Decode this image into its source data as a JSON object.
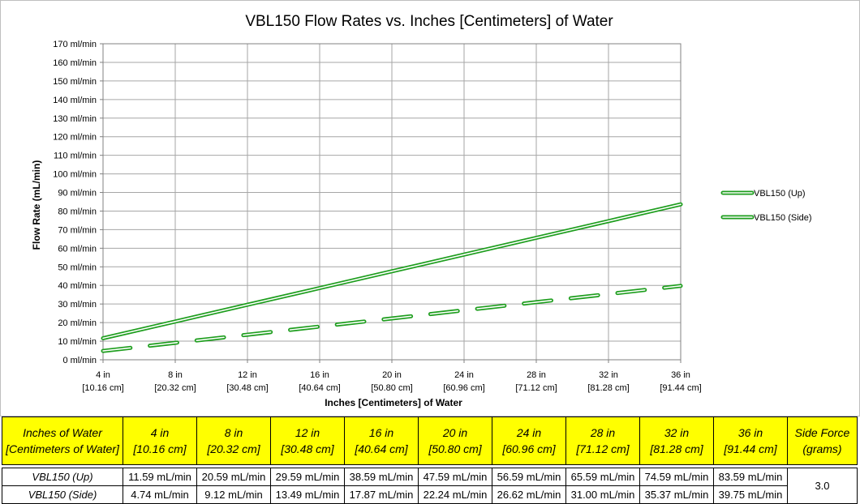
{
  "chart_data": {
    "type": "line",
    "title": "VBL150 Flow Rates vs. Inches [Centimeters] of Water",
    "xlabel": "Inches [Centimeters] of Water",
    "ylabel": "Flow Rate (mL/min)",
    "x": [
      4,
      8,
      12,
      16,
      20,
      24,
      28,
      32,
      36
    ],
    "xlim": [
      4,
      36
    ],
    "ylim": [
      0,
      170
    ],
    "x_tick_labels": [
      [
        "4 in",
        "[10.16 cm]"
      ],
      [
        "8 in",
        "[20.32 cm]"
      ],
      [
        "12 in",
        "[30.48 cm]"
      ],
      [
        "16 in",
        "[40.64 cm]"
      ],
      [
        "20 in",
        "[50.80 cm]"
      ],
      [
        "24 in",
        "[60.96 cm]"
      ],
      [
        "28 in",
        "[71.12 cm]"
      ],
      [
        "32 in",
        "[81.28 cm]"
      ],
      [
        "36 in",
        "[91.44 cm]"
      ]
    ],
    "y_tick_labels": [
      "0 ml/min",
      "10 ml/min",
      "20 ml/min",
      "30 ml/min",
      "40 ml/min",
      "50 ml/min",
      "60 ml/min",
      "70 ml/min",
      "80 ml/min",
      "90 ml/min",
      "100 ml/min",
      "110 ml/min",
      "120 ml/min",
      "130 ml/min",
      "140 ml/min",
      "150 ml/min",
      "160 ml/min",
      "170 ml/min"
    ],
    "grid": true,
    "legend_position": "right",
    "series": [
      {
        "name": "VBL150 (Up)",
        "values": [
          11.59,
          20.59,
          29.59,
          38.59,
          47.59,
          56.59,
          65.59,
          74.59,
          83.59
        ],
        "style": "solid",
        "color": "#1e9e1e"
      },
      {
        "name": "VBL150 (Side)",
        "values": [
          4.74,
          9.12,
          13.49,
          17.87,
          22.24,
          26.62,
          31.0,
          35.37,
          39.75
        ],
        "style": "dashed",
        "color": "#1e9e1e"
      }
    ]
  },
  "table": {
    "header_first": [
      "Inches of Water",
      "[Centimeters of Water]"
    ],
    "columns": [
      [
        "4 in",
        "[10.16 cm]"
      ],
      [
        "8 in",
        "[20.32 cm]"
      ],
      [
        "12 in",
        "[30.48 cm]"
      ],
      [
        "16 in",
        "[40.64 cm]"
      ],
      [
        "20 in",
        "[50.80 cm]"
      ],
      [
        "24 in",
        "[60.96 cm]"
      ],
      [
        "28 in",
        "[71.12 cm]"
      ],
      [
        "32 in",
        "[81.28 cm]"
      ],
      [
        "36 in",
        "[91.44 cm]"
      ]
    ],
    "header_last": [
      "Side Force",
      "(grams)"
    ],
    "rows": [
      {
        "label": "VBL150 (Up)",
        "cells": [
          "11.59 mL/min",
          "20.59 mL/min",
          "29.59 mL/min",
          "38.59 mL/min",
          "47.59 mL/min",
          "56.59 mL/min",
          "65.59 mL/min",
          "74.59 mL/min",
          "83.59 mL/min"
        ]
      },
      {
        "label": "VBL150 (Side)",
        "cells": [
          "4.74 mL/min",
          "9.12 mL/min",
          "13.49 mL/min",
          "17.87 mL/min",
          "22.24 mL/min",
          "26.62 mL/min",
          "31.00 mL/min",
          "35.37 mL/min",
          "39.75 mL/min"
        ]
      }
    ],
    "side_force": "3.0",
    "header_color": "#ffff00"
  }
}
